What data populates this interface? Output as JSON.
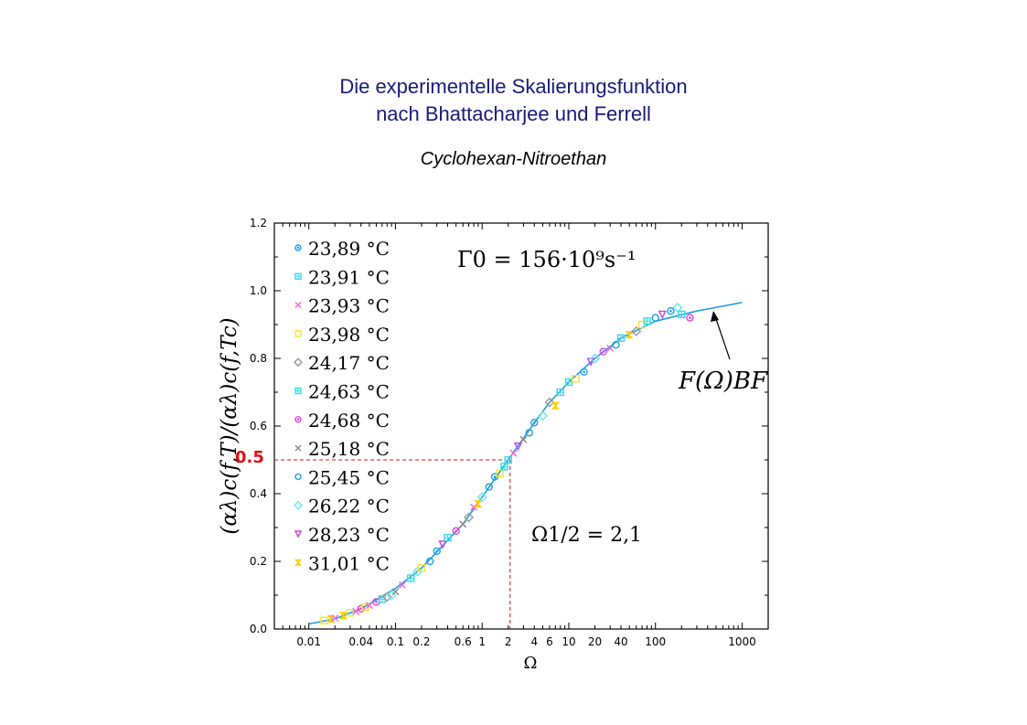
{
  "header": {
    "title_line1": "Die experimentelle Skalierungsfunktion",
    "title_line2": "nach Bhattacharjee und Ferrell",
    "subtitle": "Cyclohexan-Nitroethan"
  },
  "chart_data": {
    "type": "scatter",
    "xlabel": "Ω",
    "ylabel": "(αλ)c(f,T)/(αλ)c(f,Tc)",
    "x_scale": "log",
    "xlim": [
      0.004,
      2000
    ],
    "ylim": [
      0,
      1.2
    ],
    "x_ticks": [
      {
        "value": 0.01,
        "label": "0.01"
      },
      {
        "value": 0.04,
        "label": "0.04"
      },
      {
        "value": 0.1,
        "label": "0.1"
      },
      {
        "value": 0.2,
        "label": "0.2"
      },
      {
        "value": 0.6,
        "label": "0.6"
      },
      {
        "value": 1,
        "label": "1"
      },
      {
        "value": 2,
        "label": "2"
      },
      {
        "value": 4,
        "label": "4"
      },
      {
        "value": 6,
        "label": "6"
      },
      {
        "value": 10,
        "label": "10"
      },
      {
        "value": 20,
        "label": "20"
      },
      {
        "value": 40,
        "label": "40"
      },
      {
        "value": 100,
        "label": "100"
      },
      {
        "value": 1000,
        "label": "1000"
      }
    ],
    "y_ticks": [
      {
        "value": 0.0,
        "label": "0.0"
      },
      {
        "value": 0.2,
        "label": "0.2"
      },
      {
        "value": 0.4,
        "label": "0.4"
      },
      {
        "value": 0.6,
        "label": "0.6"
      },
      {
        "value": 0.8,
        "label": "0.8"
      },
      {
        "value": 1.0,
        "label": "1.0"
      },
      {
        "value": 1.2,
        "label": "1.2"
      }
    ],
    "legend_position": "top-left",
    "series": [
      {
        "name": "23,89 °C",
        "color": "#1a9ee8",
        "symbol": "circle-dot"
      },
      {
        "name": "23,91 °C",
        "color": "#3fd6f0",
        "symbol": "cross-box"
      },
      {
        "name": "23,93 °C",
        "color": "#ff66cc",
        "symbol": "x"
      },
      {
        "name": "23,98 °C",
        "color": "#ffe033",
        "symbol": "square"
      },
      {
        "name": "24,17 °C",
        "color": "#999999",
        "symbol": "diamond"
      },
      {
        "name": "24,63 °C",
        "color": "#33e0e0",
        "symbol": "cross-box"
      },
      {
        "name": "24,68 °C",
        "color": "#e040e0",
        "symbol": "circle-dot"
      },
      {
        "name": "25,18 °C",
        "color": "#888888",
        "symbol": "x"
      },
      {
        "name": "25,45 °C",
        "color": "#1aa0e0",
        "symbol": "circle"
      },
      {
        "name": "26,22 °C",
        "color": "#66e6f0",
        "symbol": "diamond"
      },
      {
        "name": "28,23 °C",
        "color": "#d040e0",
        "symbol": "triangle-down"
      },
      {
        "name": "31,01 °C",
        "color": "#ffd000",
        "symbol": "hourglass"
      }
    ],
    "fit_curve": {
      "name": "F(Ω)BF",
      "color": "#1aa0e0",
      "x": [
        0.01,
        0.02,
        0.04,
        0.1,
        0.2,
        0.6,
        1,
        2,
        4,
        6,
        10,
        20,
        40,
        100,
        300,
        1000
      ],
      "y": [
        0.015,
        0.03,
        0.06,
        0.12,
        0.18,
        0.31,
        0.39,
        0.5,
        0.61,
        0.67,
        0.73,
        0.8,
        0.86,
        0.91,
        0.94,
        0.965
      ]
    },
    "points": {
      "x": [
        0.015,
        0.018,
        0.02,
        0.025,
        0.03,
        0.035,
        0.04,
        0.045,
        0.05,
        0.06,
        0.07,
        0.08,
        0.09,
        0.1,
        0.12,
        0.15,
        0.18,
        0.2,
        0.25,
        0.3,
        0.35,
        0.4,
        0.5,
        0.6,
        0.7,
        0.8,
        0.9,
        1,
        1.2,
        1.4,
        1.6,
        1.8,
        2,
        2.3,
        2.6,
        3,
        3.5,
        4,
        5,
        6,
        7,
        8,
        10,
        12,
        15,
        18,
        20,
        25,
        30,
        35,
        40,
        50,
        60,
        70,
        80,
        100,
        120,
        150,
        180,
        200,
        250
      ],
      "y": [
        0.025,
        0.03,
        0.032,
        0.04,
        0.048,
        0.052,
        0.06,
        0.065,
        0.07,
        0.08,
        0.088,
        0.095,
        0.1,
        0.11,
        0.13,
        0.15,
        0.17,
        0.18,
        0.2,
        0.23,
        0.25,
        0.27,
        0.29,
        0.31,
        0.33,
        0.36,
        0.37,
        0.39,
        0.42,
        0.45,
        0.46,
        0.48,
        0.5,
        0.52,
        0.54,
        0.56,
        0.58,
        0.61,
        0.63,
        0.67,
        0.66,
        0.7,
        0.73,
        0.74,
        0.76,
        0.79,
        0.8,
        0.82,
        0.83,
        0.84,
        0.86,
        0.87,
        0.88,
        0.9,
        0.91,
        0.92,
        0.93,
        0.94,
        0.95,
        0.93,
        0.92
      ],
      "series_index": [
        3,
        11,
        2,
        11,
        3,
        2,
        6,
        3,
        2,
        6,
        1,
        4,
        9,
        7,
        2,
        5,
        9,
        3,
        8,
        0,
        10,
        1,
        6,
        7,
        4,
        2,
        11,
        9,
        8,
        0,
        3,
        5,
        1,
        2,
        10,
        7,
        8,
        0,
        9,
        4,
        11,
        1,
        5,
        3,
        0,
        10,
        9,
        6,
        2,
        8,
        1,
        11,
        4,
        3,
        5,
        8,
        10,
        0,
        9,
        1,
        6
      ]
    },
    "annotations": [
      {
        "text": "Γ0 = 156·10⁹s⁻¹"
      },
      {
        "text": "Ω1/2 = 2,1"
      },
      {
        "text": "0.5",
        "color": "#e01010"
      },
      {
        "text": "F(Ω)BF"
      }
    ],
    "half_point": {
      "x": 2.1,
      "y": 0.5
    }
  }
}
